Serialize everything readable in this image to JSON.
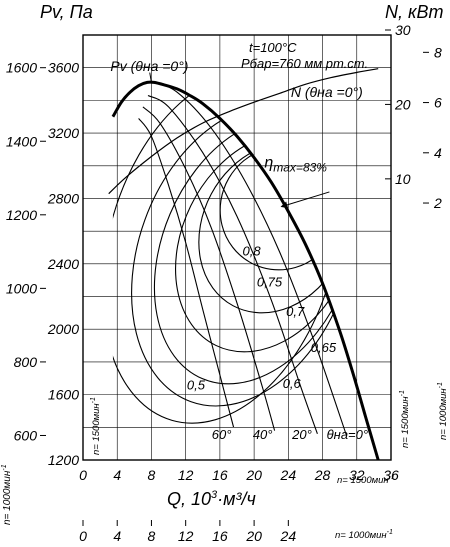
{
  "chart_data": {
    "type": "line",
    "header": {
      "temperature": "t=100°C",
      "pressure": "Pбар=760 мм рт.ст."
    },
    "axes": {
      "left_label": "Pv, Па",
      "right_label": "N, кВт",
      "x_label": "Q, 10",
      "x_label_exp": "3",
      "x_label_unit": "·м³/ч",
      "speed_main": "n= 1500мин",
      "speed_alt": "n= 1000мин",
      "speed_sup": "-1",
      "x_main": {
        "min": 0,
        "max": 36,
        "ticks": [
          0,
          4,
          8,
          12,
          16,
          20,
          24,
          28,
          32,
          36
        ]
      },
      "x_alt": {
        "min": 0,
        "max": 24,
        "ticks": [
          0,
          4,
          8,
          12,
          16,
          20,
          24
        ]
      },
      "pv_main": {
        "min": 1200,
        "max": 3800,
        "ticks": [
          1200,
          1600,
          2000,
          2400,
          2800,
          3200,
          3600
        ]
      },
      "pv_alt": {
        "ticks": [
          600,
          800,
          1000,
          1200,
          1400,
          1600
        ]
      },
      "power_main": {
        "ticks": [
          10,
          20,
          30
        ]
      },
      "power_alt": {
        "ticks": [
          2,
          4,
          6,
          8
        ]
      },
      "grid": true
    },
    "series": [
      {
        "name": "Pv (θна =0°)",
        "x": [
          3.5,
          4.5,
          5.5,
          6.5,
          7.5,
          8.3,
          9.5,
          11,
          12.5,
          14,
          16,
          18,
          20,
          22,
          24,
          26,
          28,
          30,
          31.5,
          33,
          34.5
        ],
        "y": [
          3300,
          3390,
          3450,
          3490,
          3510,
          3510,
          3495,
          3470,
          3430,
          3380,
          3290,
          3180,
          3050,
          2900,
          2720,
          2520,
          2280,
          1990,
          1740,
          1470,
          1200
        ]
      },
      {
        "name": "N (θна =0°)",
        "x": [
          3.0,
          5,
          8,
          11,
          14,
          17,
          20,
          23,
          26,
          29,
          32,
          34.5
        ],
        "y": [
          8.0,
          10.2,
          13.0,
          15.5,
          17.5,
          19.0,
          20.3,
          21.5,
          22.7,
          23.6,
          24.3,
          24.8
        ]
      }
    ],
    "efficiency": {
      "max_label": "η",
      "max_sub": "max=83%",
      "islands": [
        {
          "label": "0,5",
          "center": [
            16.2,
            2500
          ],
          "rx": 13.2,
          "ry": 1100,
          "rotation": 16
        },
        {
          "label": "0,6",
          "center": [
            18.8,
            2450
          ],
          "rx": 12.3,
          "ry": 950,
          "rotation": 20
        },
        {
          "label": "0,65",
          "center": [
            20.3,
            2480
          ],
          "rx": 11.0,
          "ry": 850,
          "rotation": 23
        },
        {
          "label": "0,7",
          "center": [
            21.4,
            2530
          ],
          "rx": 9.8,
          "ry": 700,
          "rotation": 26
        },
        {
          "label": "0,75",
          "center": [
            22.4,
            2620
          ],
          "rx": 8.4,
          "ry": 540,
          "rotation": 28
        },
        {
          "label": "0,8",
          "center": [
            23.1,
            2740
          ],
          "rx": 7.0,
          "ry": 380,
          "rotation": 30
        }
      ],
      "label_positions": [
        [
          13.2,
          1630
        ],
        [
          24.4,
          1640
        ],
        [
          28.1,
          1860
        ],
        [
          24.8,
          2080
        ],
        [
          21.8,
          2260
        ],
        [
          19.7,
          2450
        ]
      ]
    },
    "vane_angles": [
      {
        "label": "60°",
        "x": [
          6.5,
          8,
          10,
          12,
          14,
          16,
          17.6
        ],
        "y": [
          3290,
          3180,
          2880,
          2530,
          2120,
          1720,
          1400
        ]
      },
      {
        "label": "40°",
        "x": [
          7.0,
          9,
          12,
          15,
          18,
          21,
          22.4
        ],
        "y": [
          3360,
          3260,
          2980,
          2620,
          2160,
          1640,
          1380
        ]
      },
      {
        "label": "20°",
        "x": [
          7.6,
          10,
          14,
          18,
          22,
          25.5,
          27.4
        ],
        "y": [
          3430,
          3360,
          3080,
          2690,
          2180,
          1640,
          1360
        ]
      },
      {
        "label": "θна=0°",
        "x": [
          8.3,
          11,
          15,
          19,
          23,
          27,
          30.8
        ],
        "y": [
          3510,
          3450,
          3230,
          2900,
          2470,
          1930,
          1350
        ]
      }
    ],
    "angle_label_positions": [
      [
        16.2,
        1330
      ],
      [
        21.0,
        1330
      ],
      [
        25.6,
        1330
      ],
      [
        30.9,
        1330
      ]
    ],
    "pv_label_position": [
      3.2,
      3580
    ],
    "n_label_position": [
      24.3,
      3420
    ],
    "etamax_label_position": [
      21.2,
      2990
    ]
  }
}
